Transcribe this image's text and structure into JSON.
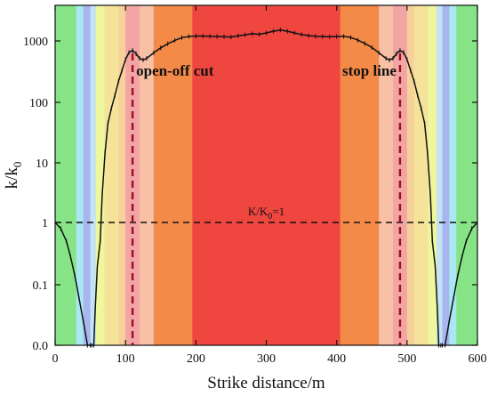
{
  "chart_data": {
    "type": "line",
    "xlabel": "Strike distance/m",
    "ylabel": "k/k",
    "ylabel_sub": "0",
    "xlim": [
      0,
      600
    ],
    "yticks": [
      {
        "value": 0.0,
        "label": "0.0"
      },
      {
        "value": 0.1,
        "label": "0.1"
      },
      {
        "value": 1,
        "label": "1"
      },
      {
        "value": 10,
        "label": "10"
      },
      {
        "value": 100,
        "label": "100"
      },
      {
        "value": 1000,
        "label": "1000"
      }
    ],
    "xticks": [
      0,
      100,
      200,
      300,
      400,
      500,
      600
    ],
    "reference_line": {
      "y": 1,
      "label": "K/K",
      "label_sub": "0",
      "label_suffix": "=1"
    },
    "annotations": [
      {
        "text": "open-off cut",
        "x": 110
      },
      {
        "text": "stop line",
        "x": 490
      }
    ],
    "background_bands": [
      {
        "x0": 0,
        "x1": 30,
        "color": "#86e486"
      },
      {
        "x0": 30,
        "x1": 40,
        "color": "#a9e7f3"
      },
      {
        "x0": 40,
        "x1": 50,
        "color": "#a8b6ef"
      },
      {
        "x0": 50,
        "x1": 58,
        "color": "#c4e3f5"
      },
      {
        "x0": 58,
        "x1": 70,
        "color": "#eef79c"
      },
      {
        "x0": 70,
        "x1": 90,
        "color": "#f5e39a"
      },
      {
        "x0": 90,
        "x1": 100,
        "color": "#f7d19a"
      },
      {
        "x0": 100,
        "x1": 120,
        "color": "#f3a4a4"
      },
      {
        "x0": 120,
        "x1": 140,
        "color": "#f8c0a4"
      },
      {
        "x0": 140,
        "x1": 195,
        "color": "#f48a48"
      },
      {
        "x0": 195,
        "x1": 405,
        "color": "#ef4640"
      },
      {
        "x0": 405,
        "x1": 460,
        "color": "#f48a48"
      },
      {
        "x0": 460,
        "x1": 480,
        "color": "#f8c0a4"
      },
      {
        "x0": 480,
        "x1": 500,
        "color": "#f3a4a4"
      },
      {
        "x0": 500,
        "x1": 510,
        "color": "#f7d19a"
      },
      {
        "x0": 510,
        "x1": 530,
        "color": "#f5e39a"
      },
      {
        "x0": 530,
        "x1": 542,
        "color": "#eef79c"
      },
      {
        "x0": 542,
        "x1": 550,
        "color": "#c4e3f5"
      },
      {
        "x0": 550,
        "x1": 560,
        "color": "#a8b6ef"
      },
      {
        "x0": 560,
        "x1": 570,
        "color": "#a9e7f3"
      },
      {
        "x0": 570,
        "x1": 600,
        "color": "#86e486"
      }
    ],
    "series": [
      {
        "color": "#111111",
        "x": [
          0,
          8,
          16,
          22,
          28,
          34,
          40,
          46,
          50,
          52,
          55,
          57,
          60,
          64,
          67,
          71,
          75,
          80,
          85,
          90,
          95,
          100,
          105,
          110,
          115,
          120,
          125,
          130,
          140,
          150,
          160,
          170,
          180,
          190,
          200,
          210,
          220,
          230,
          240,
          250,
          260,
          270,
          280,
          290,
          300,
          310,
          320,
          330,
          340,
          350,
          360,
          370,
          380,
          390,
          400,
          410,
          420,
          430,
          440,
          450,
          460,
          470,
          475,
          480,
          485,
          490,
          495,
          500,
          505,
          510,
          515,
          520,
          525,
          529,
          533,
          536,
          540,
          543,
          545,
          548,
          550,
          554,
          560,
          566,
          572,
          578,
          584,
          592,
          600
        ],
        "y": [
          1.0,
          0.8,
          0.5,
          0.28,
          0.14,
          0.06,
          0.025,
          0.01,
          0.004,
          0.0,
          0.0,
          0.04,
          0.2,
          0.5,
          3,
          15,
          45,
          80,
          130,
          220,
          330,
          500,
          650,
          700,
          620,
          520,
          490,
          520,
          640,
          770,
          900,
          1020,
          1130,
          1180,
          1200,
          1200,
          1190,
          1180,
          1170,
          1160,
          1210,
          1260,
          1310,
          1280,
          1350,
          1440,
          1510,
          1440,
          1350,
          1270,
          1220,
          1190,
          1180,
          1170,
          1180,
          1190,
          1140,
          1030,
          910,
          780,
          640,
          520,
          490,
          520,
          620,
          700,
          650,
          500,
          330,
          220,
          130,
          80,
          45,
          15,
          3,
          0.5,
          0.2,
          0.04,
          0.0,
          0.0,
          0.004,
          0.01,
          0.025,
          0.06,
          0.14,
          0.28,
          0.5,
          0.8,
          1.0
        ]
      }
    ]
  }
}
